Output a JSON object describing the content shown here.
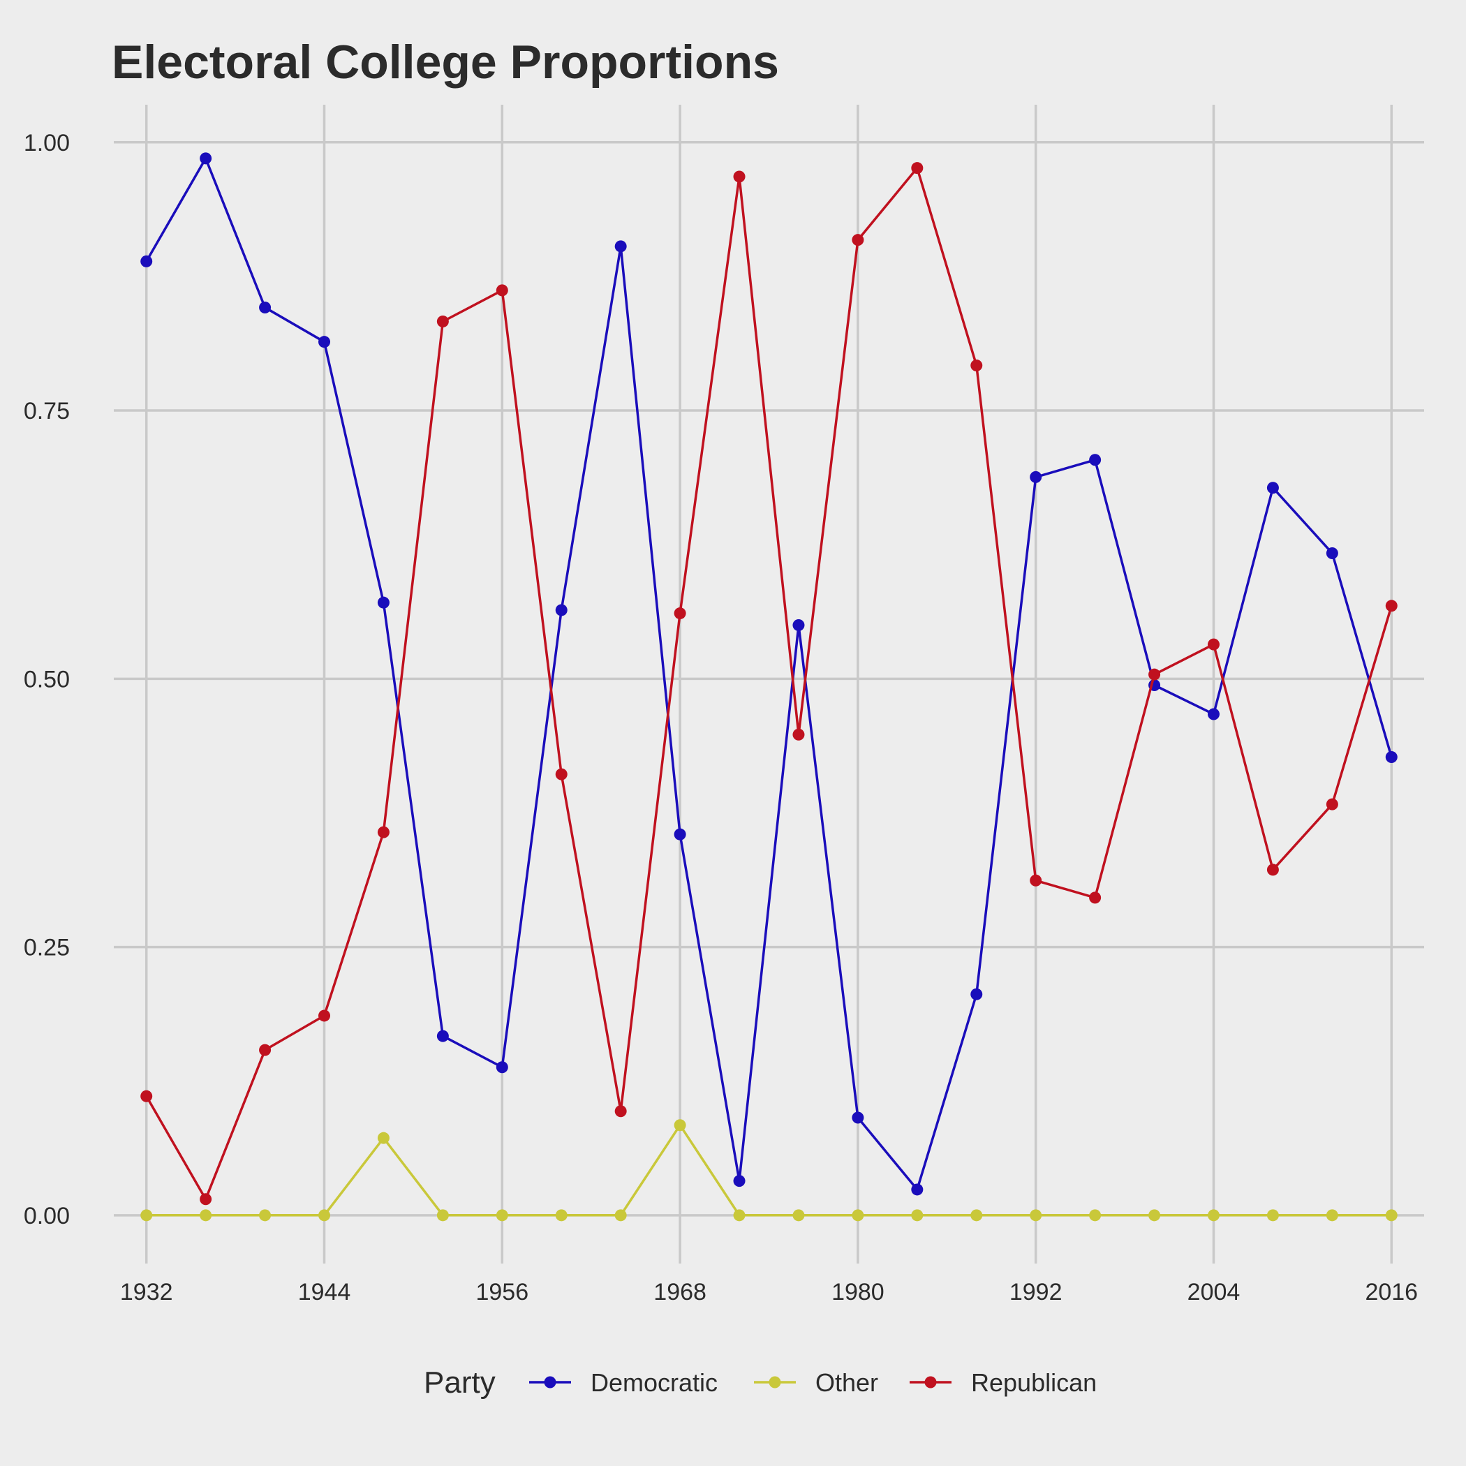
{
  "chart_data": {
    "type": "line",
    "title": "Electoral College Proportions",
    "xlabel": "",
    "ylabel": "",
    "x": [
      1932,
      1936,
      1940,
      1944,
      1948,
      1952,
      1956,
      1960,
      1964,
      1968,
      1972,
      1976,
      1980,
      1984,
      1988,
      1992,
      1996,
      2000,
      2004,
      2008,
      2012,
      2016
    ],
    "xlim": [
      1929.8,
      2018.2
    ],
    "ylim": [
      -0.045,
      1.035
    ],
    "x_ticks": [
      1932,
      1944,
      1956,
      1968,
      1980,
      1992,
      2004,
      2016
    ],
    "y_ticks": [
      0.0,
      0.25,
      0.5,
      0.75,
      1.0
    ],
    "x_tick_labels": [
      "1932",
      "1944",
      "1956",
      "1968",
      "1980",
      "1992",
      "2004",
      "2016"
    ],
    "y_tick_labels": [
      "0.00",
      "0.25",
      "0.50",
      "0.75",
      "1.00"
    ],
    "grid": true,
    "legend": {
      "title": "Party",
      "position": "bottom"
    },
    "series": [
      {
        "name": "Democratic",
        "color": "#1a0dbb",
        "values": [
          0.889,
          0.985,
          0.846,
          0.814,
          0.571,
          0.167,
          0.138,
          0.564,
          0.903,
          0.355,
          0.032,
          0.55,
          0.091,
          0.024,
          0.206,
          0.688,
          0.704,
          0.494,
          0.467,
          0.678,
          0.617,
          0.427
        ]
      },
      {
        "name": "Other",
        "color": "#c9c83a",
        "values": [
          0.0,
          0.0,
          0.0,
          0.0,
          0.072,
          0.0,
          0.0,
          0.0,
          0.0,
          0.084,
          0.0,
          0.0,
          0.0,
          0.0,
          0.0,
          0.0,
          0.0,
          0.0,
          0.0,
          0.0,
          0.0,
          0.0
        ]
      },
      {
        "name": "Republican",
        "color": "#c0111f",
        "values": [
          0.111,
          0.015,
          0.154,
          0.186,
          0.357,
          0.833,
          0.862,
          0.411,
          0.097,
          0.561,
          0.968,
          0.448,
          0.909,
          0.976,
          0.792,
          0.312,
          0.296,
          0.504,
          0.532,
          0.322,
          0.383,
          0.568
        ]
      }
    ]
  }
}
